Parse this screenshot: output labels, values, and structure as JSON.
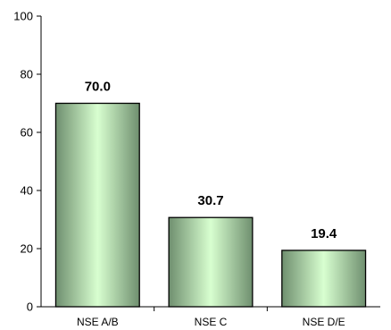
{
  "chart_data": {
    "type": "bar",
    "categories": [
      "NSE A/B",
      "NSE C",
      "NSE D/E"
    ],
    "values": [
      70.0,
      30.7,
      19.4
    ],
    "data_labels": [
      "70.0",
      "30.7",
      "19.4"
    ],
    "title": "",
    "xlabel": "",
    "ylabel": "",
    "ylim": [
      0,
      100
    ],
    "yticks": [
      0,
      20,
      40,
      60,
      80,
      100
    ],
    "grid": false,
    "legend": "none",
    "bar_colors": {
      "edge": "#6f8f6f",
      "center": "#d8ffd0",
      "outline": "#000000"
    }
  }
}
